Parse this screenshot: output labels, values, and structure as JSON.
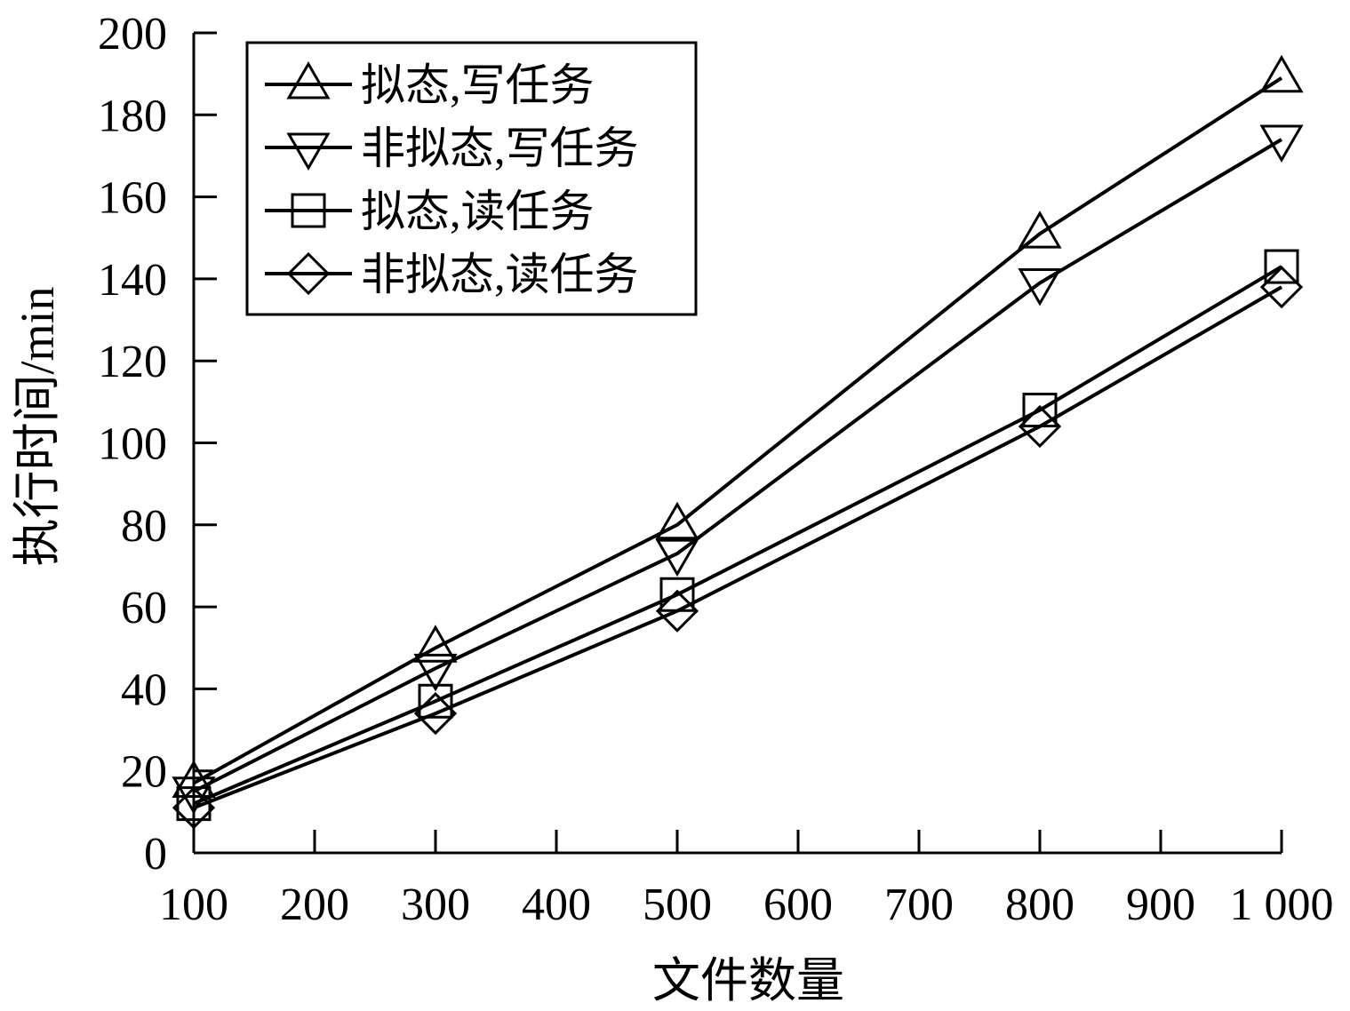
{
  "chart_data": {
    "type": "line",
    "xlabel": "文件数量",
    "ylabel": "执行时间/min",
    "x": [
      100,
      300,
      500,
      800,
      1000
    ],
    "xlim": [
      100,
      1000
    ],
    "ylim": [
      0,
      200
    ],
    "x_ticks": [
      100,
      200,
      300,
      400,
      500,
      600,
      700,
      800,
      900,
      1000
    ],
    "x_tick_labels": [
      "100",
      "200",
      "300",
      "400",
      "500",
      "600",
      "700",
      "800",
      "900",
      "1 000"
    ],
    "y_ticks": [
      0,
      20,
      40,
      60,
      80,
      100,
      120,
      140,
      160,
      180,
      200
    ],
    "y_tick_labels": [
      "0",
      "20",
      "40",
      "60",
      "80",
      "100",
      "120",
      "140",
      "160",
      "180",
      "200"
    ],
    "grid": false,
    "legend_position": "top-left",
    "series": [
      {
        "name": "拟态,写任务",
        "marker": "triangle-up",
        "values": [
          17,
          50,
          80,
          151,
          189
        ]
      },
      {
        "name": "非拟态,写任务",
        "marker": "triangle-down",
        "values": [
          15,
          45,
          73,
          139,
          174
        ]
      },
      {
        "name": "拟态,读任务",
        "marker": "square",
        "values": [
          12,
          37,
          63,
          108,
          143
        ]
      },
      {
        "name": "非拟态,读任务",
        "marker": "diamond",
        "values": [
          11,
          34,
          59,
          104,
          138
        ]
      }
    ],
    "colors": {
      "line": "#000000",
      "background": "#ffffff"
    }
  }
}
